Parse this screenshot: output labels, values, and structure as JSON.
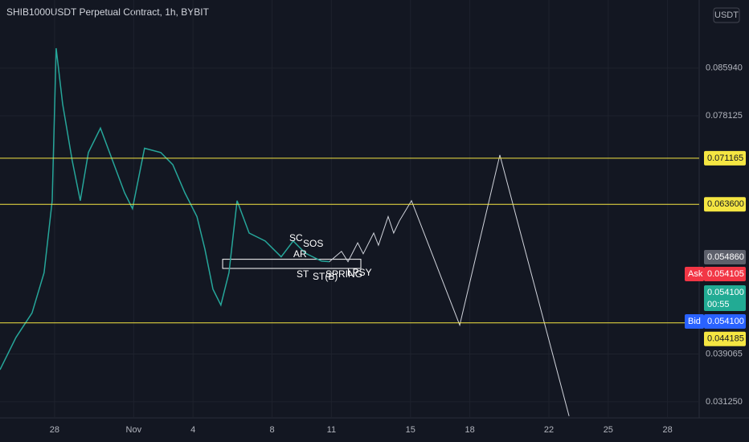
{
  "chart_data": {
    "type": "line",
    "title": "SHIB1000USDT Perpetual Contract, 1h, BYBIT",
    "currency": "USDT",
    "xlim": [
      -2.76,
      32.6
    ],
    "ylim": [
      0.0286,
      0.0971
    ],
    "xticks": [
      {
        "value": 0,
        "label": "28"
      },
      {
        "value": 4,
        "label": "Nov"
      },
      {
        "value": 7,
        "label": "4"
      },
      {
        "value": 11,
        "label": "8"
      },
      {
        "value": 14,
        "label": "11"
      },
      {
        "value": 18,
        "label": "15"
      },
      {
        "value": 21,
        "label": "18"
      },
      {
        "value": 25,
        "label": "22"
      },
      {
        "value": 28,
        "label": "25"
      },
      {
        "value": 31,
        "label": "28"
      }
    ],
    "yticks": [
      {
        "value": 0.08594,
        "label": "0.085940"
      },
      {
        "value": 0.078125,
        "label": "0.078125"
      },
      {
        "value": 0.039065,
        "label": "0.039065"
      },
      {
        "value": 0.03125,
        "label": "0.031250"
      }
    ],
    "series": [
      {
        "color": "#26a69a",
        "x": [
          -2.76,
          -1.95,
          -1.14,
          -0.53,
          -0.12,
          0.08,
          0.41,
          0.89,
          1.3,
          1.71,
          2.32,
          2.93,
          3.54,
          3.94,
          4.55,
          5.37,
          5.98,
          6.59,
          7.2,
          7.6,
          8.01,
          8.41,
          8.82,
          9.23,
          9.84,
          10.65,
          11.46,
          12.07,
          12.68,
          13.5,
          13.9
        ],
        "values": [
          0.0365,
          0.0418,
          0.0458,
          0.0524,
          0.0642,
          0.0892,
          0.08,
          0.0708,
          0.0642,
          0.0721,
          0.0761,
          0.0708,
          0.0655,
          0.0629,
          0.0728,
          0.0721,
          0.0701,
          0.0655,
          0.0616,
          0.0563,
          0.0497,
          0.0471,
          0.0524,
          0.0642,
          0.0589,
          0.0576,
          0.055,
          0.0576,
          0.0556,
          0.0543,
          0.0542
        ]
      },
      {
        "color": "#d1d4dc",
        "x": [
          13.9,
          14.51,
          14.84,
          15.33,
          15.61,
          16.14,
          16.38,
          16.87,
          17.15,
          17.44,
          18.05,
          20.49,
          22.52,
          26.02
        ],
        "values": [
          0.0542,
          0.0559,
          0.0542,
          0.0573,
          0.0555,
          0.0589,
          0.0569,
          0.0616,
          0.0589,
          0.0609,
          0.0642,
          0.0438,
          0.0717,
          0.0289
        ]
      }
    ],
    "hlines": [
      {
        "value": 0.071165,
        "label": "0.071165",
        "color": "#f5e642"
      },
      {
        "value": 0.0636,
        "label": "0.063600",
        "color": "#f5e642"
      },
      {
        "value": 0.044185,
        "label": "0.044185",
        "color": "#f5e642"
      }
    ],
    "box": {
      "x": [
        8.5,
        15.49
      ],
      "y": [
        0.0546,
        0.0531
      ]
    },
    "annotations": [
      "SC",
      "SOS",
      "AR",
      "ST",
      "ST(B)",
      "SPRING",
      "LPSY"
    ],
    "price_labels": {
      "last": "0.054860",
      "ask_tag": "Ask",
      "ask": "0.054105",
      "current": "0.054100",
      "countdown": "00:55",
      "bid_tag": "Bid",
      "bid": "0.054100"
    }
  }
}
